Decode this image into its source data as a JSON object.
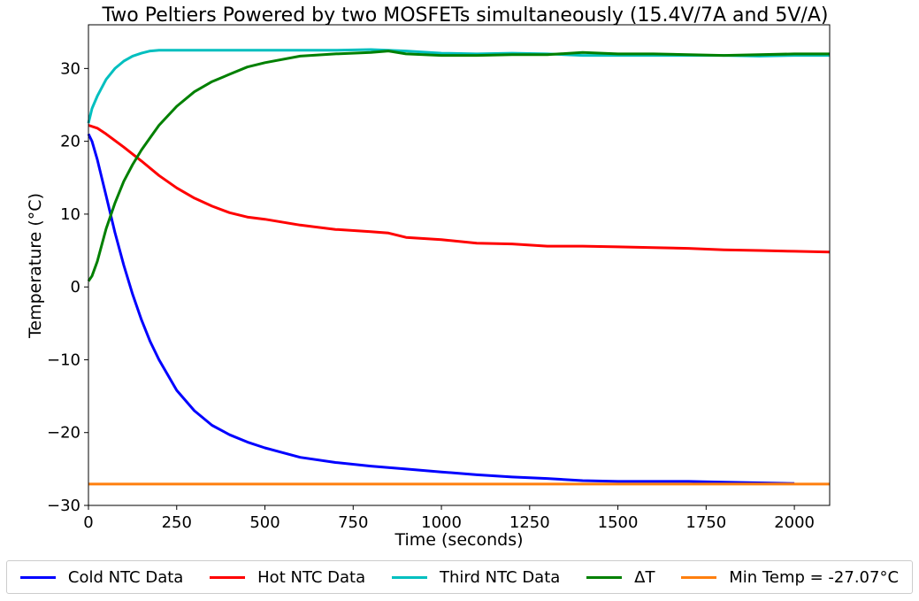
{
  "chart_data": {
    "type": "line",
    "title": "Two Peltiers Powered by two MOSFETs simultaneously (15.4V/7A and 5V/A)",
    "xlabel": "Time (seconds)",
    "ylabel": "Temperature (°C)",
    "xlim": [
      0,
      2100
    ],
    "ylim": [
      -30,
      36
    ],
    "xticks": [
      0,
      250,
      500,
      750,
      1000,
      1250,
      1500,
      1750,
      2000
    ],
    "yticks": [
      -30,
      -20,
      -10,
      0,
      10,
      20,
      30
    ],
    "grid": false,
    "legend_position": "bottom",
    "series": [
      {
        "name": "Cold NTC Data",
        "color": "#0000ff",
        "x": [
          0,
          10,
          25,
          50,
          75,
          100,
          125,
          150,
          175,
          200,
          250,
          300,
          350,
          400,
          450,
          500,
          600,
          700,
          800,
          900,
          1000,
          1100,
          1200,
          1300,
          1400,
          1500,
          1600,
          1700,
          1800,
          1900,
          2000
        ],
        "y": [
          21,
          20,
          17.5,
          12.5,
          7.5,
          3,
          -1,
          -4.5,
          -7.5,
          -10,
          -14.2,
          -17,
          -19,
          -20.3,
          -21.3,
          -22.1,
          -23.4,
          -24.1,
          -24.6,
          -25,
          -25.4,
          -25.8,
          -26.1,
          -26.3,
          -26.6,
          -26.7,
          -26.7,
          -26.7,
          -26.8,
          -26.9,
          -27
        ]
      },
      {
        "name": "Hot NTC Data",
        "color": "#ff0000",
        "x": [
          0,
          25,
          50,
          100,
          150,
          200,
          250,
          300,
          350,
          400,
          450,
          500,
          600,
          700,
          800,
          850,
          900,
          1000,
          1100,
          1200,
          1300,
          1400,
          1500,
          1600,
          1700,
          1800,
          1900,
          2000,
          2100
        ],
        "y": [
          22.2,
          21.8,
          21,
          19.2,
          17.3,
          15.3,
          13.6,
          12.2,
          11.1,
          10.2,
          9.6,
          9.3,
          8.5,
          7.9,
          7.6,
          7.4,
          6.8,
          6.5,
          6,
          5.9,
          5.6,
          5.6,
          5.5,
          5.4,
          5.3,
          5.1,
          5,
          4.9,
          4.8
        ]
      },
      {
        "name": "Third NTC Data",
        "color": "#00bfbf",
        "x": [
          0,
          10,
          25,
          50,
          75,
          100,
          125,
          150,
          175,
          200,
          250,
          300,
          400,
          500,
          600,
          700,
          800,
          900,
          1000,
          1100,
          1200,
          1300,
          1400,
          1500,
          1600,
          1700,
          1800,
          1900,
          2000,
          2100
        ],
        "y": [
          22.5,
          24.5,
          26.2,
          28.5,
          30,
          31,
          31.7,
          32.1,
          32.4,
          32.5,
          32.5,
          32.5,
          32.5,
          32.5,
          32.5,
          32.5,
          32.6,
          32.4,
          32.1,
          32,
          32.1,
          32,
          31.8,
          31.8,
          31.8,
          31.8,
          31.8,
          31.7,
          31.8,
          31.8
        ]
      },
      {
        "name": "ΔT",
        "color": "#008000",
        "x": [
          0,
          10,
          25,
          50,
          75,
          100,
          125,
          150,
          175,
          200,
          250,
          300,
          350,
          400,
          450,
          500,
          600,
          700,
          800,
          850,
          900,
          1000,
          1100,
          1200,
          1300,
          1400,
          1500,
          1600,
          1700,
          1800,
          1900,
          2000,
          2100
        ],
        "y": [
          0.8,
          1.5,
          3.5,
          8,
          11.5,
          14.5,
          16.8,
          18.8,
          20.5,
          22.2,
          24.8,
          26.8,
          28.2,
          29.2,
          30.2,
          30.8,
          31.7,
          32,
          32.2,
          32.4,
          32,
          31.8,
          31.8,
          31.9,
          31.9,
          32.2,
          32,
          32,
          31.9,
          31.8,
          31.9,
          32,
          32
        ]
      },
      {
        "name": "Min Temp = -27.07°C",
        "color": "#ff7f0e",
        "x": [
          0,
          2100
        ],
        "y": [
          -27.07,
          -27.07
        ]
      }
    ]
  }
}
